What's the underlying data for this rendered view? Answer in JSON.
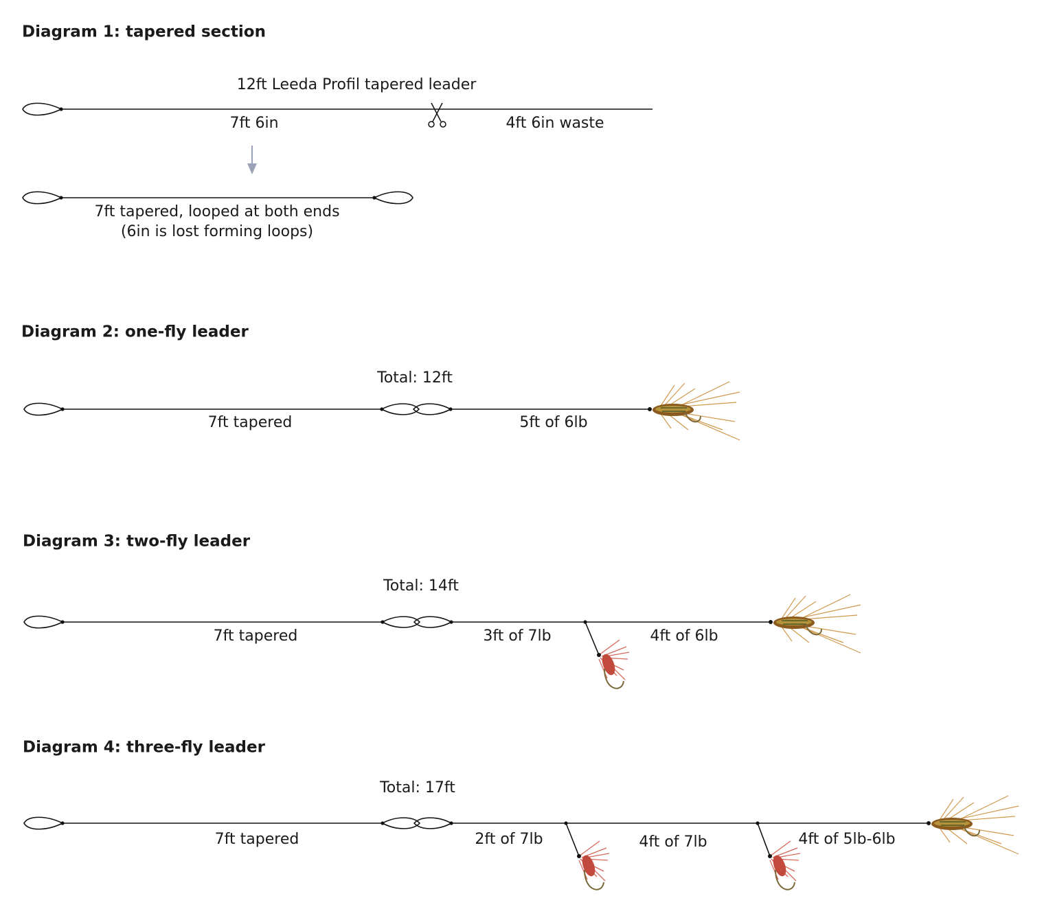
{
  "diagram1": {
    "title": "Diagram 1: tapered section",
    "leader_label": "12ft Leeda Profil tapered leader",
    "kept_label": "7ft 6in",
    "waste_label": "4ft 6in waste",
    "result_label": "7ft tapered, looped at both ends",
    "result_note": "(6in is lost forming loops)"
  },
  "diagram2": {
    "title": "Diagram 2: one-fly leader",
    "total": "Total: 12ft",
    "sections": [
      "7ft tapered",
      "5ft of 6lb"
    ]
  },
  "diagram3": {
    "title": "Diagram 3: two-fly leader",
    "total": "Total: 14ft",
    "sections": [
      "7ft tapered",
      "3ft of 7lb",
      "4ft of 6lb"
    ]
  },
  "diagram4": {
    "title": "Diagram 4: three-fly leader",
    "total": "Total: 17ft",
    "sections": [
      "7ft tapered",
      "2ft of 7lb",
      "4ft of 7lb",
      "4ft of 5lb-6lb"
    ]
  }
}
